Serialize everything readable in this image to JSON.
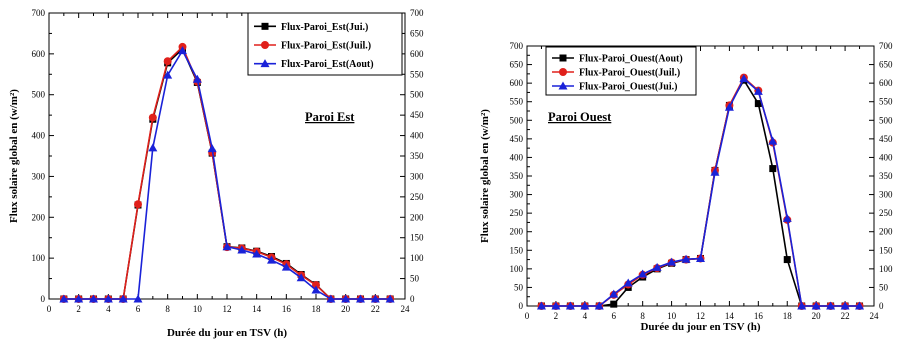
{
  "colors": {
    "black": "#000000",
    "red": "#e0201b",
    "blue": "#1a22d8"
  },
  "chart_data": [
    {
      "type": "line",
      "title": "Paroi Est",
      "xlabel": "Durée du jour en TSV (h)",
      "ylabel": "Flux solaire global  en (w/m²)",
      "xlim": [
        0,
        24
      ],
      "ylim": [
        0,
        700
      ],
      "y2lim": [
        0,
        700
      ],
      "xticks": [
        0,
        2,
        4,
        6,
        8,
        10,
        12,
        14,
        16,
        18,
        20,
        22,
        24
      ],
      "yticks": [
        0,
        100,
        200,
        300,
        400,
        500,
        600,
        700
      ],
      "y2ticks": [
        0,
        50,
        100,
        150,
        200,
        250,
        300,
        350,
        400,
        450,
        500,
        550,
        600,
        650,
        700
      ],
      "legend_position": "top-right",
      "series": [
        {
          "name": "Flux-Paroi_Est(Jui.)",
          "color": "black",
          "marker": "square",
          "x": [
            1,
            2,
            3,
            4,
            5,
            6,
            7,
            8,
            9,
            10,
            11,
            12,
            13,
            14,
            15,
            16,
            17,
            18,
            19,
            20,
            21,
            22,
            23
          ],
          "y": [
            0,
            0,
            0,
            0,
            0,
            230,
            440,
            578,
            612,
            530,
            357,
            128,
            125,
            117,
            104,
            87,
            60,
            35,
            0,
            0,
            0,
            0,
            0
          ]
        },
        {
          "name": "Flux-Paroi_Est(Juil.)",
          "color": "red",
          "marker": "circle",
          "x": [
            1,
            2,
            3,
            4,
            5,
            6,
            7,
            8,
            9,
            10,
            11,
            12,
            13,
            14,
            15,
            16,
            17,
            18,
            19,
            20,
            21,
            22,
            23
          ],
          "y": [
            0,
            0,
            0,
            0,
            0,
            232,
            444,
            582,
            617,
            532,
            358,
            127,
            124,
            116,
            102,
            85,
            58,
            34,
            0,
            0,
            0,
            0,
            0
          ]
        },
        {
          "name": "Flux-Paroi_Est(Aout)",
          "color": "blue",
          "marker": "triangle",
          "x": [
            1,
            2,
            3,
            4,
            5,
            6,
            7,
            8,
            9,
            10,
            11,
            12,
            13,
            14,
            15,
            16,
            17,
            18,
            19,
            20,
            21,
            22,
            23
          ],
          "y": [
            0,
            0,
            0,
            0,
            0,
            0,
            370,
            548,
            608,
            538,
            368,
            128,
            120,
            110,
            95,
            78,
            52,
            22,
            0,
            0,
            0,
            0,
            0
          ]
        }
      ]
    },
    {
      "type": "line",
      "title": "Paroi Ouest",
      "xlabel": "Durée du jour en TSV (h)",
      "ylabel": "Flux solaire global  en (w/m²)",
      "xlim": [
        0,
        24
      ],
      "ylim": [
        0,
        700
      ],
      "y2lim": [
        0,
        700
      ],
      "xticks": [
        0,
        2,
        4,
        6,
        8,
        10,
        12,
        14,
        16,
        18,
        20,
        22,
        24
      ],
      "yticks": [
        0,
        50,
        100,
        150,
        200,
        250,
        300,
        350,
        400,
        450,
        500,
        550,
        600,
        650,
        700
      ],
      "y2ticks": [
        0,
        50,
        100,
        150,
        200,
        250,
        300,
        350,
        400,
        450,
        500,
        550,
        600,
        650,
        700
      ],
      "legend_position": "top-left",
      "series": [
        {
          "name": "Flux-Paroi_Ouest(Aout)",
          "color": "black",
          "marker": "square",
          "x": [
            1,
            2,
            3,
            4,
            5,
            6,
            7,
            8,
            9,
            10,
            11,
            12,
            13,
            14,
            15,
            16,
            17,
            18,
            19,
            20,
            21,
            22,
            23
          ],
          "y": [
            0,
            0,
            0,
            0,
            0,
            5,
            50,
            78,
            100,
            115,
            125,
            128,
            365,
            540,
            608,
            545,
            370,
            125,
            0,
            0,
            0,
            0,
            0
          ]
        },
        {
          "name": "Flux-Paroi_Ouest(Juil.)",
          "color": "red",
          "marker": "circle",
          "x": [
            1,
            2,
            3,
            4,
            5,
            6,
            7,
            8,
            9,
            10,
            11,
            12,
            13,
            14,
            15,
            16,
            17,
            18,
            19,
            20,
            21,
            22,
            23
          ],
          "y": [
            0,
            0,
            0,
            0,
            0,
            30,
            58,
            84,
            102,
            117,
            125,
            128,
            365,
            540,
            615,
            580,
            440,
            232,
            0,
            0,
            0,
            0,
            0
          ]
        },
        {
          "name": "Flux-Paroi_Ouest(Jui.)",
          "color": "blue",
          "marker": "triangle",
          "x": [
            1,
            2,
            3,
            4,
            5,
            6,
            7,
            8,
            9,
            10,
            11,
            12,
            13,
            14,
            15,
            16,
            17,
            18,
            19,
            20,
            21,
            22,
            23
          ],
          "y": [
            0,
            0,
            0,
            0,
            0,
            32,
            62,
            86,
            104,
            118,
            126,
            128,
            360,
            535,
            612,
            578,
            444,
            236,
            0,
            0,
            0,
            0,
            0
          ]
        }
      ]
    }
  ]
}
